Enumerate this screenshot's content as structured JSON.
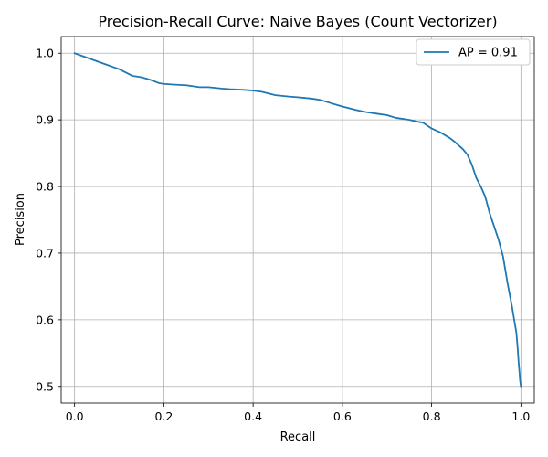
{
  "chart_data": {
    "type": "line",
    "title": "Precision-Recall Curve: Naive Bayes (Count Vectorizer)",
    "xlabel": "Recall",
    "ylabel": "Precision",
    "xlim": [
      -0.03,
      1.03
    ],
    "ylim": [
      0.475,
      1.025
    ],
    "xticks": [
      0.0,
      0.2,
      0.4,
      0.6,
      0.8,
      1.0
    ],
    "xtick_labels": [
      "0.0",
      "0.2",
      "0.4",
      "0.6",
      "0.8",
      "1.0"
    ],
    "yticks": [
      0.5,
      0.6,
      0.7,
      0.8,
      0.9,
      1.0
    ],
    "ytick_labels": [
      "0.5",
      "0.6",
      "0.7",
      "0.8",
      "0.9",
      "1.0"
    ],
    "grid": true,
    "legend_position": "upper-right",
    "series": [
      {
        "name": "AP = 0.91",
        "color": "#1f77b4",
        "x": [
          0.0,
          0.05,
          0.1,
          0.13,
          0.15,
          0.17,
          0.19,
          0.2,
          0.22,
          0.25,
          0.28,
          0.3,
          0.33,
          0.35,
          0.38,
          0.4,
          0.42,
          0.45,
          0.48,
          0.5,
          0.53,
          0.55,
          0.57,
          0.59,
          0.6,
          0.63,
          0.65,
          0.68,
          0.7,
          0.72,
          0.75,
          0.77,
          0.78,
          0.8,
          0.82,
          0.84,
          0.85,
          0.87,
          0.88,
          0.89,
          0.9,
          0.91,
          0.92,
          0.93,
          0.94,
          0.95,
          0.96,
          0.97,
          0.98,
          0.985,
          0.99,
          0.993,
          0.995,
          0.997,
          0.998,
          1.0
        ],
        "y": [
          1.0,
          0.988,
          0.976,
          0.966,
          0.964,
          0.96,
          0.955,
          0.954,
          0.953,
          0.952,
          0.949,
          0.949,
          0.947,
          0.946,
          0.945,
          0.944,
          0.942,
          0.937,
          0.935,
          0.934,
          0.932,
          0.93,
          0.926,
          0.922,
          0.92,
          0.915,
          0.912,
          0.909,
          0.907,
          0.903,
          0.9,
          0.897,
          0.896,
          0.887,
          0.881,
          0.873,
          0.868,
          0.856,
          0.848,
          0.833,
          0.813,
          0.8,
          0.785,
          0.76,
          0.74,
          0.72,
          0.695,
          0.655,
          0.62,
          0.6,
          0.58,
          0.555,
          0.535,
          0.52,
          0.51,
          0.5
        ]
      }
    ]
  }
}
